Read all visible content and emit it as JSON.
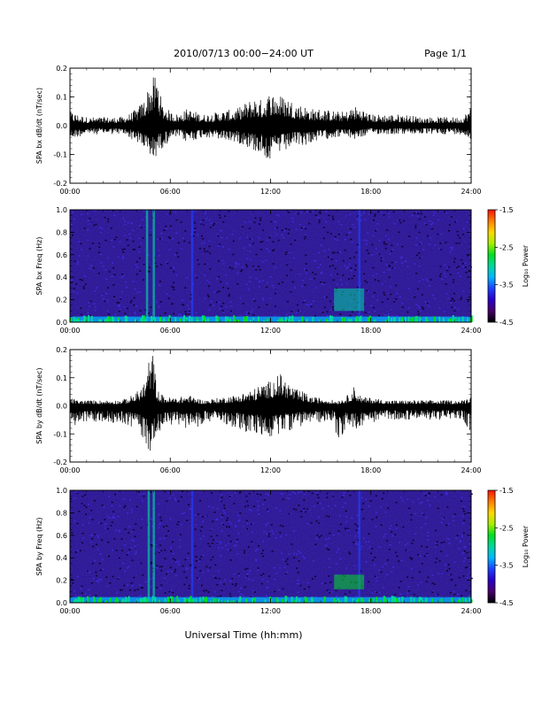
{
  "header": {
    "title": "2010/07/13  00:00−24:00 UT",
    "page_label": "Page 1/1"
  },
  "footer": {
    "xlabel": "Universal Time (hh:mm)"
  },
  "colorbar": {
    "label": "Log₁₀ Power",
    "ticks": [
      "-1.5",
      "-2.5",
      "-3.5",
      "-4.5"
    ],
    "colors": [
      "#000000",
      "#4a006e",
      "#2a00c8",
      "#1e40ff",
      "#00b8ff",
      "#00d8a0",
      "#00e020",
      "#a8f000",
      "#ffd800",
      "#ff8000",
      "#ff1000"
    ]
  },
  "colors": {
    "trace": "#000000",
    "background_spectrogram": "#2e1a9a"
  },
  "chart_data": [
    {
      "type": "line",
      "ylabel": "SPA bx dB/dt (nT/sec)",
      "xlim": [
        0,
        24
      ],
      "ylim": [
        -0.2,
        0.2
      ],
      "xticks": [
        "00:00",
        "06:00",
        "12:00",
        "18:00",
        "24:00"
      ],
      "yticks": [
        "0.2",
        "0.1",
        "0.0",
        "-0.1",
        "-0.2"
      ],
      "series": [
        {
          "x": [
            0,
            0.5,
            1,
            1.5,
            2,
            2.5,
            3,
            3.5,
            4,
            4.4,
            4.6,
            4.8,
            5,
            5.2,
            5.5,
            6,
            6.5,
            7,
            7.5,
            8,
            9,
            10,
            10.5,
            11,
            11.5,
            12,
            12.5,
            13,
            13.5,
            14,
            14.5,
            15,
            16,
            16.5,
            17,
            17.5,
            18,
            19,
            20,
            21,
            22,
            23,
            23.5,
            24
          ],
          "ymax": [
            0.05,
            0.04,
            0.03,
            0.03,
            0.03,
            0.03,
            0.03,
            0.04,
            0.06,
            0.09,
            0.12,
            0.16,
            0.17,
            0.19,
            0.08,
            0.05,
            0.04,
            0.06,
            0.05,
            0.04,
            0.05,
            0.06,
            0.08,
            0.1,
            0.09,
            0.12,
            0.11,
            0.1,
            0.08,
            0.07,
            0.06,
            0.06,
            0.05,
            0.05,
            0.07,
            0.06,
            0.04,
            0.04,
            0.04,
            0.03,
            0.03,
            0.03,
            0.03,
            0.07
          ],
          "ymin": [
            -0.05,
            -0.04,
            -0.03,
            -0.03,
            -0.03,
            -0.03,
            -0.03,
            -0.04,
            -0.06,
            -0.08,
            -0.11,
            -0.12,
            -0.13,
            -0.1,
            -0.08,
            -0.05,
            -0.04,
            -0.06,
            -0.05,
            -0.04,
            -0.05,
            -0.06,
            -0.07,
            -0.09,
            -0.1,
            -0.13,
            -0.1,
            -0.09,
            -0.07,
            -0.07,
            -0.06,
            -0.05,
            -0.04,
            -0.04,
            -0.05,
            -0.04,
            -0.03,
            -0.03,
            -0.03,
            -0.03,
            -0.03,
            -0.03,
            -0.03,
            -0.06
          ]
        }
      ]
    },
    {
      "type": "heatmap",
      "ylabel": "SPA bx Freq (Hz)",
      "xlim": [
        0,
        24
      ],
      "ylim": [
        0.0,
        1.0
      ],
      "xticks": [
        "00:00",
        "06:00",
        "12:00",
        "18:00",
        "24:00"
      ],
      "yticks": [
        "1.0",
        "0.8",
        "0.6",
        "0.4",
        "0.2",
        "0.0"
      ],
      "zlim": [
        -4.5,
        -1.5
      ],
      "zlabel": "Log₁₀ Power",
      "features": [
        {
          "kind": "vertical_band",
          "x": 4.6,
          "z": -3.0
        },
        {
          "kind": "vertical_band",
          "x": 5.0,
          "z": -2.9
        },
        {
          "kind": "vertical_band",
          "x": 7.3,
          "z": -3.6
        },
        {
          "kind": "vertical_band",
          "x": 17.3,
          "z": -3.5
        },
        {
          "kind": "patch",
          "x": [
            15.8,
            17.6
          ],
          "y": [
            0.1,
            0.3
          ],
          "z": -3.0
        },
        {
          "kind": "low_freq_band",
          "y": [
            0.0,
            0.05
          ],
          "z": -2.5
        }
      ]
    },
    {
      "type": "line",
      "ylabel": "SPA by dB/dt (nT/sec)",
      "xlim": [
        0,
        24
      ],
      "ylim": [
        -0.2,
        0.2
      ],
      "xticks": [
        "00:00",
        "06:00",
        "12:00",
        "18:00",
        "24:00"
      ],
      "yticks": [
        "0.2",
        "0.1",
        "0.0",
        "-0.1",
        "-0.2"
      ],
      "series": [
        {
          "x": [
            0,
            0.5,
            1,
            1.5,
            2,
            2.5,
            3,
            3.5,
            4,
            4.4,
            4.6,
            4.8,
            5,
            5.2,
            5.5,
            6,
            6.5,
            7,
            7.5,
            8,
            9,
            10,
            10.5,
            11,
            11.5,
            12,
            12.5,
            13,
            13.5,
            14,
            14.5,
            15,
            15.8,
            16,
            16.5,
            17,
            17.5,
            18,
            19,
            20,
            21,
            22,
            23,
            23.5,
            24
          ],
          "ymax": [
            0.03,
            0.02,
            0.02,
            0.02,
            0.02,
            0.02,
            0.02,
            0.03,
            0.05,
            0.08,
            0.12,
            0.2,
            0.18,
            0.06,
            0.04,
            0.03,
            0.03,
            0.04,
            0.03,
            0.02,
            0.03,
            0.04,
            0.05,
            0.06,
            0.08,
            0.09,
            0.12,
            0.09,
            0.06,
            0.05,
            0.03,
            0.03,
            0.02,
            0.02,
            0.03,
            0.07,
            0.03,
            0.03,
            0.02,
            0.02,
            0.02,
            0.02,
            0.02,
            0.02,
            0.04
          ],
          "ymin": [
            -0.08,
            -0.07,
            -0.06,
            -0.06,
            -0.06,
            -0.06,
            -0.06,
            -0.07,
            -0.09,
            -0.12,
            -0.15,
            -0.17,
            -0.13,
            -0.1,
            -0.08,
            -0.07,
            -0.07,
            -0.08,
            -0.08,
            -0.06,
            -0.06,
            -0.08,
            -0.1,
            -0.1,
            -0.11,
            -0.12,
            -0.1,
            -0.09,
            -0.08,
            -0.07,
            -0.06,
            -0.06,
            -0.05,
            -0.14,
            -0.08,
            -0.09,
            -0.07,
            -0.06,
            -0.05,
            -0.05,
            -0.05,
            -0.05,
            -0.05,
            -0.05,
            -0.1
          ]
        }
      ]
    },
    {
      "type": "heatmap",
      "ylabel": "SPA by Freq (Hz)",
      "xlim": [
        0,
        24
      ],
      "ylim": [
        0.0,
        1.0
      ],
      "xticks": [
        "00:00",
        "06:00",
        "12:00",
        "18:00",
        "24:00"
      ],
      "yticks": [
        "1.0",
        "0.8",
        "0.6",
        "0.4",
        "0.2",
        "0.0"
      ],
      "zlim": [
        -4.5,
        -1.5
      ],
      "zlabel": "Log₁₀ Power",
      "features": [
        {
          "kind": "vertical_band",
          "x": 4.7,
          "z": -3.0
        },
        {
          "kind": "vertical_band",
          "x": 5.0,
          "z": -2.9
        },
        {
          "kind": "vertical_band",
          "x": 7.3,
          "z": -3.6
        },
        {
          "kind": "vertical_band",
          "x": 17.3,
          "z": -3.5
        },
        {
          "kind": "patch",
          "x": [
            15.8,
            17.6
          ],
          "y": [
            0.12,
            0.25
          ],
          "z": -2.8
        },
        {
          "kind": "low_freq_band",
          "y": [
            0.0,
            0.05
          ],
          "z": -2.5
        }
      ]
    }
  ]
}
